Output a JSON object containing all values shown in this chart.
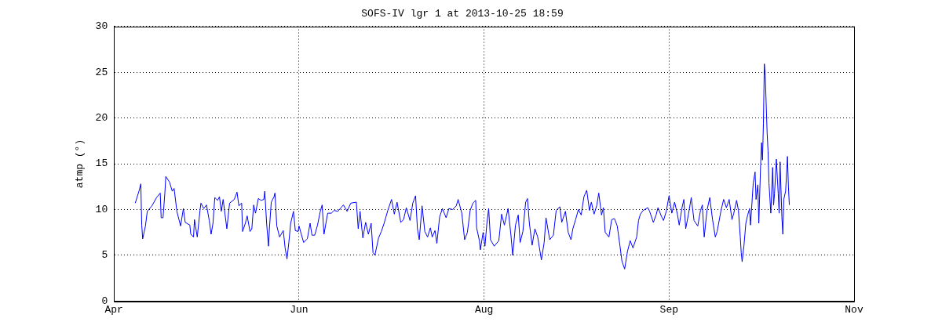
{
  "chart_data": {
    "type": "line",
    "title": "SOFS-IV lgr 1 at 2013-10-25 18:59",
    "ylabel": "atmp (°)",
    "color": "#0000ff",
    "xlim": [
      "2013-04-25",
      "2013-11-11"
    ],
    "xticks": [
      {
        "value": "2013-04-25",
        "label": "Apr"
      },
      {
        "value": "2013-06-14",
        "label": "Jun"
      },
      {
        "value": "2013-08-03",
        "label": "Aug"
      },
      {
        "value": "2013-09-22",
        "label": "Sep"
      },
      {
        "value": "2013-11-11",
        "label": "Nov"
      }
    ],
    "ylim": [
      0,
      30
    ],
    "yticks": [
      0,
      5,
      10,
      15,
      20,
      25,
      30
    ],
    "grid": true,
    "legend": false,
    "marker": "none",
    "line_style": "solid",
    "x": [
      "2013-04-30T18:00",
      "2013-05-01T18:00",
      "2013-05-02T06:00",
      "2013-05-02T12:00",
      "2013-05-02T18:00",
      "2013-05-03T12:00",
      "2013-05-04T00:00",
      "2013-05-05T06:00",
      "2013-05-06T12:00",
      "2013-05-07T12:00",
      "2013-05-07T18:00",
      "2013-05-08T06:00",
      "2013-05-08T18:00",
      "2013-05-09T00:00",
      "2013-05-10T00:00",
      "2013-05-10T18:00",
      "2013-05-11T06:00",
      "2013-05-12T00:00",
      "2013-05-13T00:00",
      "2013-05-13T18:00",
      "2013-05-14T06:00",
      "2013-05-15T12:00",
      "2013-05-15T18:00",
      "2013-05-16T12:00",
      "2013-05-16T18:00",
      "2013-05-17T12:00",
      "2013-05-18T06:00",
      "2013-05-18T12:00",
      "2013-05-19T06:00",
      "2013-05-20T00:00",
      "2013-05-20T18:00",
      "2013-05-21T06:00",
      "2013-05-21T18:00",
      "2013-05-22T06:00",
      "2013-05-23T00:00",
      "2013-05-23T12:00",
      "2013-05-24T00:00",
      "2013-05-24T12:00",
      "2013-05-25T00:00",
      "2013-05-25T12:00",
      "2013-05-26T06:00",
      "2013-05-27T12:00",
      "2013-05-28T06:00",
      "2013-05-28T18:00",
      "2013-05-29T12:00",
      "2013-05-29T18:00",
      "2013-05-30T12:00",
      "2013-05-31T00:00",
      "2013-05-31T18:00",
      "2013-06-01T06:00",
      "2013-06-01T18:00",
      "2013-06-02T06:00",
      "2013-06-03T00:00",
      "2013-06-03T18:00",
      "2013-06-04T12:00",
      "2013-06-04T18:00",
      "2013-06-05T06:00",
      "2013-06-05T18:00",
      "2013-06-06T00:00",
      "2013-06-06T12:00",
      "2013-06-07T06:00",
      "2013-06-07T12:00",
      "2013-06-08T00:00",
      "2013-06-08T18:00",
      "2013-06-09T18:00",
      "2013-06-10T06:00",
      "2013-06-10T18:00",
      "2013-06-11T06:00",
      "2013-06-11T18:00",
      "2013-06-12T12:00",
      "2013-06-13T00:00",
      "2013-06-13T18:00",
      "2013-06-14T00:00",
      "2013-06-15T06:00",
      "2013-06-16T06:00",
      "2013-06-17T00:00",
      "2013-06-17T12:00",
      "2013-06-18T06:00",
      "2013-06-19T00:00",
      "2013-06-19T18:00",
      "2013-06-20T06:00",
      "2013-06-20T18:00",
      "2013-06-21T18:00",
      "2013-06-22T18:00",
      "2013-06-23T12:00",
      "2013-06-24T12:00",
      "2013-06-26T00:00",
      "2013-06-27T00:00",
      "2013-06-28T00:00",
      "2013-06-29T12:00",
      "2013-06-30T00:00",
      "2013-06-30T12:00",
      "2013-07-01T06:00",
      "2013-07-02T00:00",
      "2013-07-02T18:00",
      "2013-07-03T12:00",
      "2013-07-04T00:00",
      "2013-07-04T12:00",
      "2013-07-05T12:00",
      "2013-07-06T06:00",
      "2013-07-07T00:00",
      "2013-07-08T00:00",
      "2013-07-09T00:00",
      "2013-07-09T18:00",
      "2013-07-10T12:00",
      "2013-07-11T12:00",
      "2013-07-12T06:00",
      "2013-07-13T00:00",
      "2013-07-14T00:00",
      "2013-07-14T18:00",
      "2013-07-15T12:00",
      "2013-07-16T00:00",
      "2013-07-16T12:00",
      "2013-07-17T06:00",
      "2013-07-18T00:00",
      "2013-07-18T18:00",
      "2013-07-19T12:00",
      "2013-07-20T00:00",
      "2013-07-20T18:00",
      "2013-07-21T06:00",
      "2013-07-22T00:00",
      "2013-07-22T18:00",
      "2013-07-23T18:00",
      "2013-07-24T12:00",
      "2013-07-25T12:00",
      "2013-07-26T12:00",
      "2013-07-27T00:00",
      "2013-07-28T00:00",
      "2013-07-28T18:00",
      "2013-07-29T12:00",
      "2013-07-30T06:00",
      "2013-07-31T00:00",
      "2013-07-31T18:00",
      "2013-08-01T00:00",
      "2013-08-01T18:00",
      "2013-08-02T00:00",
      "2013-08-02T18:00",
      "2013-08-03T06:00",
      "2013-08-03T18:00",
      "2013-08-04T06:00",
      "2013-08-04T18:00",
      "2013-08-05T18:00",
      "2013-08-07T00:00",
      "2013-08-07T18:00",
      "2013-08-08T12:00",
      "2013-08-09T12:00",
      "2013-08-10T06:00",
      "2013-08-10T18:00",
      "2013-08-11T12:00",
      "2013-08-12T06:00",
      "2013-08-12T18:00",
      "2013-08-13T12:00",
      "2013-08-14T06:00",
      "2013-08-14T18:00",
      "2013-08-15T06:00",
      "2013-08-16T00:00",
      "2013-08-16T18:00",
      "2013-08-17T12:00",
      "2013-08-18T12:00",
      "2013-08-19T06:00",
      "2013-08-19T18:00",
      "2013-08-20T18:00",
      "2013-08-21T18:00",
      "2013-08-22T12:00",
      "2013-08-23T12:00",
      "2013-08-24T00:00",
      "2013-08-25T00:00",
      "2013-08-25T18:00",
      "2013-08-26T12:00",
      "2013-08-27T00:00",
      "2013-08-27T18:00",
      "2013-08-28T12:00",
      "2013-08-29T06:00",
      "2013-08-30T00:00",
      "2013-08-30T18:00",
      "2013-08-31T12:00",
      "2013-09-01T00:00",
      "2013-09-01T18:00",
      "2013-09-02T12:00",
      "2013-09-03T00:00",
      "2013-09-03T18:00",
      "2013-09-04T06:00",
      "2013-09-04T18:00",
      "2013-09-05T18:00",
      "2013-09-06T12:00",
      "2013-09-07T06:00",
      "2013-09-08T00:00",
      "2013-09-08T18:00",
      "2013-09-09T06:00",
      "2013-09-10T00:00",
      "2013-09-10T18:00",
      "2013-09-11T12:00",
      "2013-09-12T06:00",
      "2013-09-13T06:00",
      "2013-09-13T18:00",
      "2013-09-14T06:00",
      "2013-09-15T00:00",
      "2013-09-16T06:00",
      "2013-09-16T18:00",
      "2013-09-17T18:00",
      "2013-09-18T12:00",
      "2013-09-19T00:00",
      "2013-09-20T00:00",
      "2013-09-20T12:00",
      "2013-09-21T06:00",
      "2013-09-22T00:00",
      "2013-09-22T18:00",
      "2013-09-23T12:00",
      "2013-09-24T06:00",
      "2013-09-24T18:00",
      "2013-09-25T12:00",
      "2013-09-26T00:00",
      "2013-09-26T12:00",
      "2013-09-27T06:00",
      "2013-09-28T00:00",
      "2013-09-28T18:00",
      "2013-09-29T18:00",
      "2013-09-30T12:00",
      "2013-10-01T00:00",
      "2013-10-01T12:00",
      "2013-10-02T06:00",
      "2013-10-03T00:00",
      "2013-10-03T18:00",
      "2013-10-04T12:00",
      "2013-10-05T00:00",
      "2013-10-06T00:00",
      "2013-10-06T18:00",
      "2013-10-07T12:00",
      "2013-10-08T06:00",
      "2013-10-09T00:00",
      "2013-10-09T12:00",
      "2013-10-10T06:00",
      "2013-10-10T18:00",
      "2013-10-11T06:00",
      "2013-10-11T12:00",
      "2013-10-11T18:00",
      "2013-10-12T06:00",
      "2013-10-12T18:00",
      "2013-10-13T06:00",
      "2013-10-13T18:00",
      "2013-10-14T00:00",
      "2013-10-14T12:00",
      "2013-10-14T18:00",
      "2013-10-15T06:00",
      "2013-10-15T12:00",
      "2013-10-16T00:00",
      "2013-10-16T06:00",
      "2013-10-16T18:00",
      "2013-10-17T00:00",
      "2013-10-17T06:00",
      "2013-10-17T12:00",
      "2013-10-17T18:00",
      "2013-10-18T00:00",
      "2013-10-18T12:00",
      "2013-10-18T18:00",
      "2013-10-19T00:00",
      "2013-10-19T12:00",
      "2013-10-20T00:00",
      "2013-10-20T06:00",
      "2013-10-20T12:00",
      "2013-10-21T00:00",
      "2013-10-21T12:00",
      "2013-10-21T18:00",
      "2013-10-22T00:00",
      "2013-10-22T12:00",
      "2013-10-22T18:00",
      "2013-10-23T00:00",
      "2013-10-23T12:00",
      "2013-10-24T00:00",
      "2013-10-24T06:00",
      "2013-10-24T12:00"
    ],
    "values": [
      10.7,
      12.0,
      12.8,
      8.3,
      6.8,
      8.2,
      9.8,
      10.4,
      11.3,
      11.8,
      9.1,
      9.1,
      11.8,
      13.6,
      13.0,
      12.0,
      12.3,
      9.8,
      8.2,
      10.1,
      8.6,
      8.3,
      7.3,
      7.0,
      8.9,
      7.0,
      9.9,
      10.7,
      10.1,
      10.5,
      8.8,
      7.3,
      8.5,
      11.3,
      11.0,
      11.4,
      9.8,
      11.1,
      9.5,
      7.9,
      10.7,
      11.1,
      11.9,
      10.4,
      10.7,
      7.6,
      8.5,
      9.3,
      7.6,
      7.9,
      10.5,
      9.6,
      11.2,
      11.0,
      11.1,
      12.0,
      8.5,
      6.0,
      7.9,
      10.8,
      11.4,
      11.8,
      8.2,
      7.0,
      7.7,
      5.8,
      4.6,
      6.4,
      8.5,
      9.8,
      7.7,
      7.6,
      8.2,
      6.4,
      6.8,
      8.5,
      7.2,
      7.2,
      8.3,
      9.8,
      10.5,
      7.3,
      9.6,
      9.6,
      9.9,
      9.8,
      10.5,
      9.8,
      10.7,
      10.8,
      7.9,
      9.8,
      6.9,
      8.6,
      7.3,
      8.5,
      5.3,
      5.0,
      6.9,
      7.6,
      8.5,
      9.9,
      11.1,
      9.5,
      10.8,
      8.6,
      8.9,
      10.2,
      8.8,
      10.7,
      11.5,
      7.9,
      6.7,
      10.4,
      7.6,
      7.0,
      8.0,
      7.0,
      7.7,
      6.3,
      9.2,
      10.1,
      9.1,
      10.1,
      10.0,
      10.4,
      11.1,
      9.6,
      6.7,
      7.5,
      9.9,
      10.7,
      11.0,
      8.0,
      6.6,
      5.6,
      7.5,
      6.0,
      8.4,
      10.1,
      6.7,
      6.0,
      6.6,
      9.5,
      8.3,
      10.1,
      7.3,
      5.0,
      8.3,
      9.4,
      6.4,
      7.6,
      10.8,
      11.2,
      8.5,
      6.1,
      7.9,
      7.0,
      4.5,
      6.4,
      9.1,
      6.7,
      7.2,
      9.9,
      10.3,
      8.6,
      9.8,
      7.5,
      6.7,
      7.9,
      8.9,
      10.0,
      9.4,
      11.4,
      12.1,
      9.9,
      10.8,
      9.5,
      10.5,
      11.8,
      9.4,
      10.2,
      7.5,
      7.0,
      8.9,
      9.0,
      8.2,
      6.0,
      4.4,
      3.5,
      5.4,
      6.6,
      5.8,
      7.0,
      8.8,
      9.5,
      9.9,
      10.2,
      9.8,
      8.6,
      9.4,
      10.2,
      9.2,
      8.8,
      9.8,
      11.5,
      9.6,
      10.8,
      9.5,
      8.3,
      10.2,
      11.1,
      7.9,
      9.5,
      11.3,
      8.8,
      8.2,
      9.9,
      10.5,
      7.0,
      9.9,
      11.3,
      8.9,
      7.0,
      7.6,
      9.8,
      11.1,
      10.2,
      11.1,
      8.9,
      9.6,
      11.0,
      9.9,
      7.0,
      5.3,
      4.3,
      6.1,
      8.5,
      9.4,
      10.1,
      8.3,
      11.3,
      12.9,
      14.1,
      11.1,
      12.7,
      8.5,
      14.9,
      17.3,
      15.4,
      19.4,
      25.9,
      24.6,
      18.4,
      16.4,
      12.9,
      9.6,
      14.6,
      10.5,
      11.7,
      15.5,
      11.7,
      9.6,
      15.2,
      9.1,
      7.3,
      11.1,
      12.0,
      15.8,
      12.6,
      10.5
    ]
  }
}
